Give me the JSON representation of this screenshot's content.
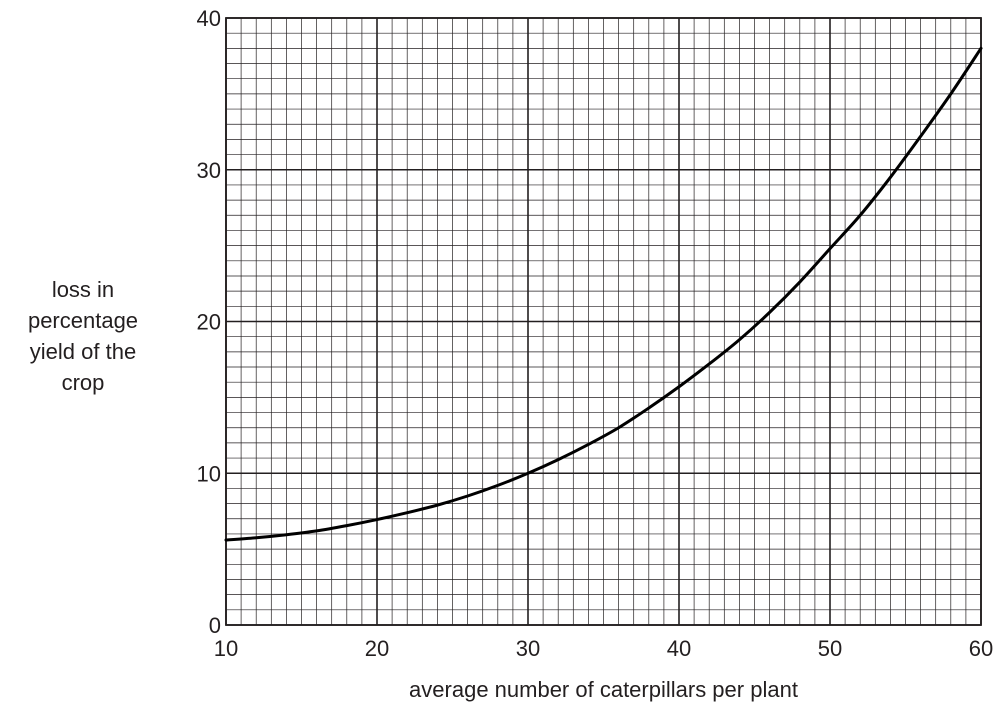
{
  "chart_data": {
    "type": "line",
    "title": "",
    "xlabel": "average number of caterpillars per plant",
    "ylabel_lines": [
      "loss in",
      "percentage",
      "yield of the",
      "crop"
    ],
    "xlim": [
      10,
      60
    ],
    "ylim": [
      0,
      40
    ],
    "x_ticks": [
      10,
      20,
      30,
      40,
      50,
      60
    ],
    "y_ticks": [
      0,
      10,
      20,
      30,
      40
    ],
    "x_tick_labels": [
      "10",
      "20",
      "30",
      "40",
      "50",
      "60"
    ],
    "y_tick_labels": [
      "0",
      "10",
      "20",
      "30",
      "40"
    ],
    "grid": true,
    "x_minor_step": 1,
    "y_minor_step": 1,
    "series": [
      {
        "x": [
          10,
          12,
          14,
          16,
          18,
          20,
          22,
          24,
          26,
          28,
          30,
          32,
          34,
          36,
          38,
          40,
          42,
          44,
          46,
          48,
          50,
          52,
          54,
          56,
          58,
          60
        ],
        "y": [
          5.6,
          5.75,
          5.95,
          6.2,
          6.55,
          6.95,
          7.4,
          7.9,
          8.5,
          9.2,
          10.0,
          10.9,
          11.9,
          13.0,
          14.3,
          15.7,
          17.2,
          18.8,
          20.6,
          22.6,
          24.8,
          27.0,
          29.5,
          32.2,
          35.0,
          38.0
        ]
      }
    ],
    "colors": {
      "ink": "#231f20",
      "curve": "#000000",
      "background": "#ffffff"
    }
  }
}
